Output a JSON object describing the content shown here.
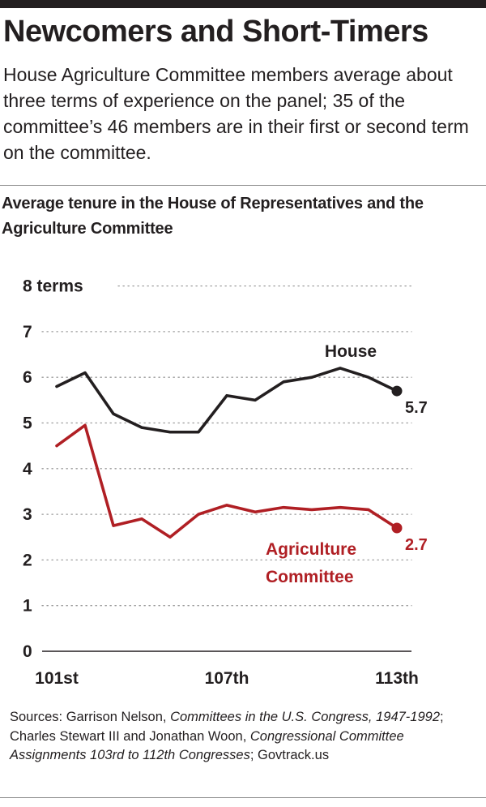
{
  "headline": "Newcomers and Short-Timers",
  "dek": "House Agriculture Committee members average about three terms of experience on the panel; 35 of the committee’s 46 members are in their first or second term on the committee.",
  "chart_data": {
    "type": "line",
    "title": "Average tenure in the House of Representatives and the Agriculture Committee",
    "xlabel": "",
    "ylabel": "",
    "x": [
      101,
      102,
      103,
      104,
      105,
      106,
      107,
      108,
      109,
      110,
      111,
      112,
      113
    ],
    "x_tick_labels": [
      "101st",
      "107th",
      "113th"
    ],
    "x_tick_positions": [
      101,
      107,
      113
    ],
    "ylim": [
      0,
      8
    ],
    "y_ticks": [
      0,
      1,
      2,
      3,
      4,
      5,
      6,
      7,
      8
    ],
    "y_tick_labels": [
      "0",
      "1",
      "2",
      "3",
      "4",
      "5",
      "6",
      "7",
      "8 terms"
    ],
    "grid": "dotted horizontal",
    "series": [
      {
        "name": "House",
        "color": "#231f20",
        "values": [
          5.8,
          6.1,
          5.2,
          4.9,
          4.8,
          4.8,
          5.6,
          5.5,
          5.9,
          6.0,
          6.2,
          6.0,
          5.7
        ],
        "end_label": "5.7"
      },
      {
        "name": "Agriculture Committee",
        "label_lines": [
          "Agriculture",
          "Committee"
        ],
        "color": "#b01f24",
        "values": [
          4.5,
          4.95,
          2.75,
          2.9,
          2.5,
          3.0,
          3.2,
          3.05,
          3.15,
          3.1,
          3.15,
          3.1,
          2.7
        ],
        "end_label": "2.7"
      }
    ]
  },
  "sources": {
    "prefix": "Sources: Garrison Nelson, ",
    "book1": "Committees in the U.S. Congress, 1947-1992",
    "mid": "; Charles Stewart III and Jonathan Woon, ",
    "book2": "Congressional Committee Assignments 103rd to 112th Congresses",
    "suffix": "; Govtrack.us"
  }
}
